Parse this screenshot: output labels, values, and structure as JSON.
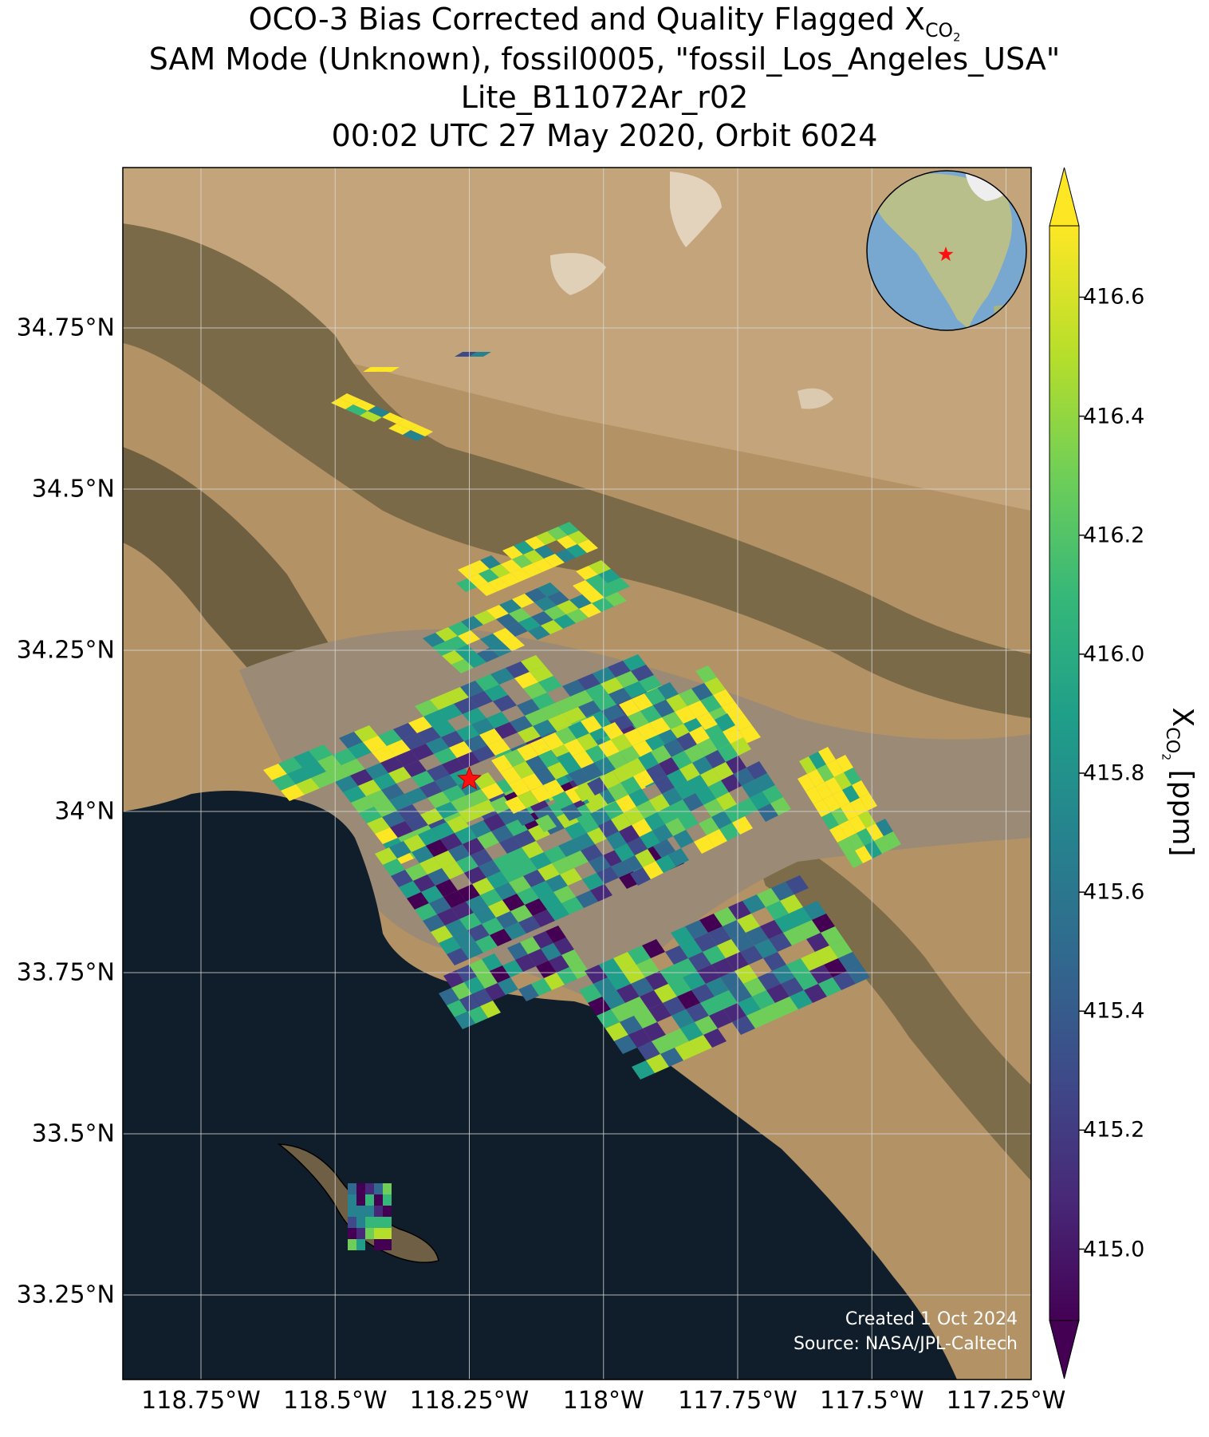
{
  "titles": {
    "line1": "OCO-3 Bias Corrected and Quality Flagged X",
    "line1_sub": "CO",
    "line1_sub2": "2",
    "line2": "SAM Mode (Unknown), fossil0005, \"fossil_Los_Angeles_USA\"",
    "line3": "Lite_B11072Ar_r02",
    "line4": "00:02 UTC 27 May 2020, Orbit 6024"
  },
  "colorbar": {
    "label": "X",
    "label_sub": "CO",
    "label_sub2": "2",
    "label_unit": " [ppm]",
    "ticks": [
      "416.6",
      "416.4",
      "416.2",
      "416.0",
      "415.8",
      "415.6",
      "415.4",
      "415.2",
      "415.0"
    ],
    "range": [
      414.88,
      416.72
    ],
    "colors": [
      "#440154",
      "#482878",
      "#3e4a89",
      "#31688e",
      "#26828e",
      "#1f9e89",
      "#35b779",
      "#6ece58",
      "#b5de2b",
      "#fde725"
    ]
  },
  "axes": {
    "lat_ticks": [
      "34.75°N",
      "34.5°N",
      "34.25°N",
      "34°N",
      "33.75°N",
      "33.5°N",
      "33.25°N"
    ],
    "lon_ticks": [
      "118.75°W",
      "118.5°W",
      "118.25°W",
      "118°W",
      "117.75°W",
      "117.5°W",
      "117.25°W"
    ],
    "lat_range": [
      33.12,
      34.98
    ],
    "lon_range": [
      118.87,
      117.25
    ],
    "grid": true
  },
  "credit": {
    "line1": "Created 1 Oct 2024",
    "line2": "Source: NASA/JPL-Caltech"
  },
  "target": {
    "name": "fossil_Los_Angeles_USA",
    "lat": 34.05,
    "lon": -118.25,
    "marker": "red-star"
  },
  "inset": {
    "type": "globe",
    "region": "North America",
    "marker": "red-star"
  },
  "map_colors": {
    "land": "#b39266",
    "mountains": "#6f6040",
    "ocean": "#101d2a",
    "star": "#ff1010"
  }
}
